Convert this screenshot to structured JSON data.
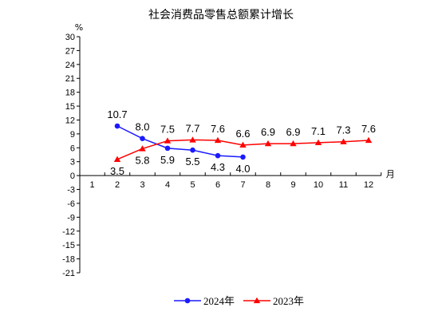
{
  "chart_data": {
    "type": "line",
    "title": "社会消费品零售总额累计增长",
    "ylabel": "%",
    "xlabel": "月",
    "categories": [
      "1",
      "2",
      "3",
      "4",
      "5",
      "6",
      "7",
      "8",
      "9",
      "10",
      "11",
      "12"
    ],
    "yticks": [
      "30",
      "27",
      "24",
      "21",
      "18",
      "15",
      "12",
      "9",
      "6",
      "3",
      "0",
      "-3",
      "-6",
      "-9",
      "-12",
      "-15",
      "-18",
      "-21"
    ],
    "ylim": [
      -21,
      30
    ],
    "grid": false,
    "legend": "bottom",
    "series": [
      {
        "name": "2024年",
        "color": "#1a1aff",
        "marker": "circle",
        "x": [
          2,
          3,
          4,
          5,
          6,
          7
        ],
        "values": [
          10.7,
          8.0,
          5.9,
          5.5,
          4.3,
          4.0
        ],
        "labels": [
          "10.7",
          "8.0",
          "5.9",
          "5.5",
          "4.3",
          "4.0"
        ]
      },
      {
        "name": "2023年",
        "color": "#ff0000",
        "marker": "triangle",
        "x": [
          2,
          3,
          4,
          5,
          6,
          7,
          8,
          9,
          10,
          11,
          12
        ],
        "values": [
          3.5,
          5.8,
          7.5,
          7.7,
          7.6,
          6.6,
          6.9,
          6.9,
          7.1,
          7.3,
          7.6
        ],
        "labels": [
          "3.5",
          "5.8",
          "7.5",
          "7.7",
          "7.6",
          "6.6",
          "6.9",
          "6.9",
          "7.1",
          "7.3",
          "7.6"
        ]
      }
    ]
  }
}
